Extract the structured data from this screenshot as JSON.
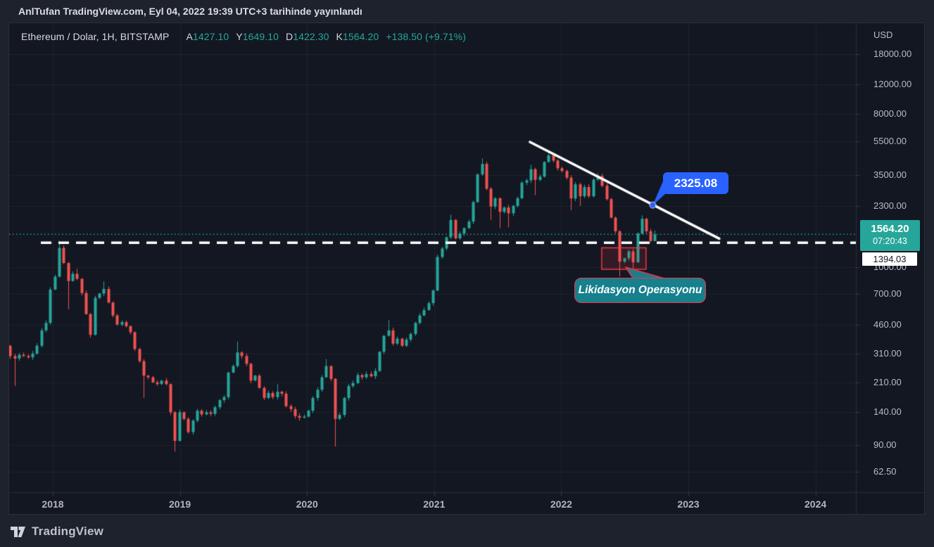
{
  "published_bar": {
    "text": "AnlTufan TradingView.com, Eyl 04, 2022 19:39 UTC+3 tarihinde yayınlandı"
  },
  "legend": {
    "symbol": "Ethereum / Dolar, 1H, BITSTAMP",
    "ohlc": [
      {
        "label": "A",
        "value": "1427.10"
      },
      {
        "label": "Y",
        "value": "1649.10"
      },
      {
        "label": "D",
        "value": "1422.30"
      },
      {
        "label": "K",
        "value": "1564.20"
      }
    ],
    "change": "+138.50 (+9.71%)"
  },
  "price_axis": {
    "unit": "USD",
    "ticks": [
      {
        "label": "18000.00",
        "value": 18000
      },
      {
        "label": "12000.00",
        "value": 12000
      },
      {
        "label": "8000.00",
        "value": 8000
      },
      {
        "label": "5500.00",
        "value": 5500
      },
      {
        "label": "3500.00",
        "value": 3500
      },
      {
        "label": "2300.00",
        "value": 2300
      },
      {
        "label": "1000.00",
        "value": 1000
      },
      {
        "label": "700.00",
        "value": 700
      },
      {
        "label": "460.00",
        "value": 460
      },
      {
        "label": "310.00",
        "value": 310
      },
      {
        "label": "210.00",
        "value": 210
      },
      {
        "label": "140.00",
        "value": 140
      },
      {
        "label": "90.00",
        "value": 90
      },
      {
        "label": "62.50",
        "value": 62.5
      }
    ],
    "price_badge": {
      "price": "1564.20",
      "countdown": "07:20:43"
    },
    "line_badge": "1394.03"
  },
  "time_axis": {
    "years": [
      {
        "label": "2018",
        "value": 2018
      },
      {
        "label": "2019",
        "value": 2019
      },
      {
        "label": "2020",
        "value": 2020
      },
      {
        "label": "2021",
        "value": 2021
      },
      {
        "label": "2022",
        "value": 2022
      },
      {
        "label": "2023",
        "value": 2023
      },
      {
        "label": "2024",
        "value": 2024
      }
    ]
  },
  "annotations": {
    "trendline_price": "2325.08",
    "liquidation_label": "Likidasyon Operasyonu"
  },
  "footer": {
    "brand": "TradingView"
  },
  "colors": {
    "up": "#26a69a",
    "down": "#ef5350",
    "accent_blue": "#2962ff",
    "callout_teal": "#16808D",
    "box_red": "#f23645",
    "trendline": "#ffffff",
    "current_price_line": "#26a69a",
    "dashed_line": "#ffffff",
    "grid": "rgba(240,243,250,0.055)",
    "axis_border": "#2a2e39"
  },
  "chart_data": {
    "type": "candlestick",
    "pair": "ETH/USD",
    "timeframe_label": "1H",
    "exchange": "BITSTAMP",
    "price_scale": "log",
    "x_range_years": [
      2017.6,
      2024.3
    ],
    "y_range_price": [
      55,
      21000
    ],
    "last_candle_ohlc": {
      "open": 1427.1,
      "high": 1649.1,
      "low": 1422.3,
      "close": 1564.2,
      "change": "+138.50",
      "change_pct": "+9.71%"
    },
    "current_price": 1564.2,
    "dashed_level_price": 1394.03,
    "dashed_level_start_year": 2017.906,
    "trendline": {
      "from": [
        2021.754,
        5467
      ],
      "to": [
        2023.243,
        1475
      ]
    },
    "trendline_marker": {
      "year": 2022.72,
      "price": 2325.08
    },
    "liquidation_box": {
      "years": [
        2022.318,
        2022.667
      ],
      "prices": [
        973,
        1302
      ]
    },
    "candles": [
      [
        2017.63,
        345
      ],
      [
        2017.665,
        300
      ],
      [
        2017.7,
        290,
        200
      ],
      [
        2017.735,
        305
      ],
      [
        2017.77,
        300
      ],
      [
        2017.805,
        295
      ],
      [
        2017.84,
        310
      ],
      [
        2017.875,
        345
      ],
      [
        2017.91,
        425
      ],
      [
        2017.945,
        470
      ],
      [
        2017.98,
        740
      ],
      [
        2018.015,
        880
      ],
      [
        2018.05,
        1300,
        null,
        1430
      ],
      [
        2018.085,
        1060
      ],
      [
        2018.12,
        830,
        565
      ],
      [
        2018.155,
        915
      ],
      [
        2018.19,
        855,
        null,
        980
      ],
      [
        2018.225,
        705
      ],
      [
        2018.26,
        530
      ],
      [
        2018.295,
        400
      ],
      [
        2018.33,
        660
      ],
      [
        2018.365,
        700
      ],
      [
        2018.4,
        745,
        null,
        825
      ],
      [
        2018.435,
        620
      ],
      [
        2018.47,
        520
      ],
      [
        2018.505,
        460
      ],
      [
        2018.54,
        475
      ],
      [
        2018.575,
        450
      ],
      [
        2018.61,
        415
      ],
      [
        2018.645,
        330
      ],
      [
        2018.68,
        280
      ],
      [
        2018.715,
        230,
        170
      ],
      [
        2018.75,
        225
      ],
      [
        2018.785,
        210
      ],
      [
        2018.82,
        205
      ],
      [
        2018.855,
        215
      ],
      [
        2018.89,
        205
      ],
      [
        2018.925,
        140
      ],
      [
        2018.96,
        95,
        82
      ],
      [
        2018.995,
        140
      ],
      [
        2019.03,
        128
      ],
      [
        2019.065,
        107
      ],
      [
        2019.1,
        125
      ],
      [
        2019.135,
        143
      ],
      [
        2019.17,
        136
      ],
      [
        2019.205,
        140
      ],
      [
        2019.24,
        137
      ],
      [
        2019.275,
        150
      ],
      [
        2019.31,
        165
      ],
      [
        2019.345,
        172
      ],
      [
        2019.38,
        240
      ],
      [
        2019.415,
        262
      ],
      [
        2019.45,
        315,
        null,
        365
      ],
      [
        2019.485,
        300
      ],
      [
        2019.52,
        270
      ],
      [
        2019.555,
        215
      ],
      [
        2019.59,
        230
      ],
      [
        2019.625,
        195
      ],
      [
        2019.66,
        170
      ],
      [
        2019.695,
        182
      ],
      [
        2019.73,
        172
      ],
      [
        2019.765,
        185,
        null,
        205
      ],
      [
        2019.8,
        180
      ],
      [
        2019.835,
        152
      ],
      [
        2019.87,
        146
      ],
      [
        2019.905,
        133
      ],
      [
        2019.94,
        130
      ],
      [
        2019.975,
        132
      ],
      [
        2020.01,
        143
      ],
      [
        2020.045,
        170
      ],
      [
        2020.08,
        190
      ],
      [
        2020.115,
        225
      ],
      [
        2020.15,
        262,
        null,
        288
      ],
      [
        2020.185,
        220
      ],
      [
        2020.22,
        128,
        88
      ],
      [
        2020.255,
        135
      ],
      [
        2020.29,
        170
      ],
      [
        2020.325,
        200
      ],
      [
        2020.36,
        208
      ],
      [
        2020.395,
        232
      ],
      [
        2020.43,
        225
      ],
      [
        2020.465,
        235
      ],
      [
        2020.5,
        228
      ],
      [
        2020.535,
        245
      ],
      [
        2020.57,
        318
      ],
      [
        2020.605,
        395
      ],
      [
        2020.64,
        425,
        null,
        488
      ],
      [
        2020.675,
        355
      ],
      [
        2020.71,
        380
      ],
      [
        2020.745,
        345
      ],
      [
        2020.78,
        375
      ],
      [
        2020.815,
        405
      ],
      [
        2020.85,
        470
      ],
      [
        2020.885,
        520
      ],
      [
        2020.92,
        560
      ],
      [
        2020.955,
        615
      ],
      [
        2020.99,
        730
      ],
      [
        2021.025,
        1150
      ],
      [
        2021.06,
        1290
      ],
      [
        2021.095,
        1500
      ],
      [
        2021.13,
        1900,
        null,
        2040
      ],
      [
        2021.165,
        1480
      ],
      [
        2021.2,
        1580
      ],
      [
        2021.235,
        1700
      ],
      [
        2021.27,
        1860
      ],
      [
        2021.305,
        2420
      ],
      [
        2021.34,
        3520
      ],
      [
        2021.375,
        4060,
        null,
        4380
      ],
      [
        2021.41,
        2900
      ],
      [
        2021.445,
        2280,
        1900
      ],
      [
        2021.48,
        2550
      ],
      [
        2021.515,
        2120,
        1700
      ],
      [
        2021.55,
        2250
      ],
      [
        2021.585,
        2080,
        1720
      ],
      [
        2021.62,
        2300
      ],
      [
        2021.655,
        2550
      ],
      [
        2021.69,
        3150
      ],
      [
        2021.725,
        3250
      ],
      [
        2021.76,
        3780,
        null,
        4020
      ],
      [
        2021.795,
        3270,
        2660
      ],
      [
        2021.83,
        3420
      ],
      [
        2021.865,
        4170
      ],
      [
        2021.9,
        4560,
        null,
        4870
      ],
      [
        2021.935,
        4250
      ],
      [
        2021.97,
        3830
      ],
      [
        2022.005,
        3690
      ],
      [
        2022.04,
        3370
      ],
      [
        2022.075,
        2540,
        2170
      ],
      [
        2022.11,
        3080
      ],
      [
        2022.145,
        2620,
        2300
      ],
      [
        2022.18,
        2970
      ],
      [
        2022.215,
        2620
      ],
      [
        2022.25,
        3280
      ],
      [
        2022.285,
        3450,
        null,
        3580
      ],
      [
        2022.32,
        3020
      ],
      [
        2022.355,
        2520
      ],
      [
        2022.39,
        1960
      ],
      [
        2022.425,
        1630
      ],
      [
        2022.46,
        1080,
        881
      ],
      [
        2022.495,
        1130
      ],
      [
        2022.53,
        1240
      ],
      [
        2022.565,
        1070,
        950
      ],
      [
        2022.6,
        1580
      ],
      [
        2022.635,
        1930,
        null,
        2020
      ],
      [
        2022.67,
        1630
      ],
      [
        2022.7,
        1427
      ],
      [
        2022.735,
        1564.2,
        1422.3,
        1649.1
      ]
    ]
  }
}
